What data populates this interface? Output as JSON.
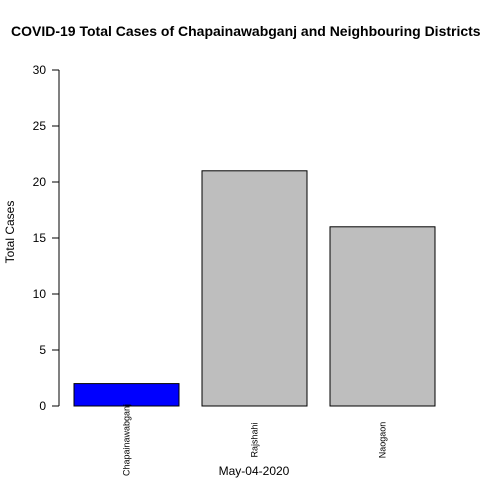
{
  "chart_data": {
    "type": "bar",
    "title": "COVID-19 Total Cases of Chapainawabganj and Neighbouring Districts",
    "xlabel": "May-04-2020",
    "ylabel": "Total Cases",
    "categories": [
      "Chapainawabganj",
      "Rajshahi",
      "Naogaon"
    ],
    "values": [
      2,
      21,
      16
    ],
    "bar_colors": [
      "#0000ff",
      "#bebebe",
      "#bebebe"
    ],
    "ylim": [
      0,
      30
    ],
    "yticks": [
      "0",
      "5",
      "10",
      "15",
      "20",
      "25",
      "30"
    ],
    "grid": false,
    "legend": "none"
  }
}
